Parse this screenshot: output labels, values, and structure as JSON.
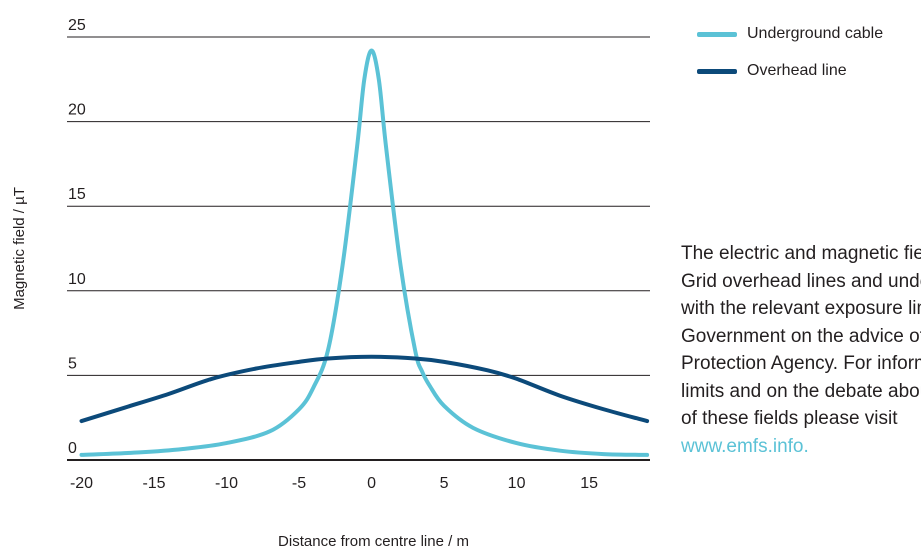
{
  "chart_data": {
    "type": "line",
    "xlabel": "Distance from centre line / m",
    "ylabel": "Magnetic field / µT",
    "xlim": [
      -21,
      19.2
    ],
    "ylim": [
      0,
      25
    ],
    "xticks": [
      -20,
      -15,
      -10,
      -5,
      0,
      5,
      10,
      15
    ],
    "yticks": [
      0,
      5,
      10,
      15,
      20,
      25
    ],
    "grid": "horizontal",
    "legend_position": "top-right",
    "series": [
      {
        "name": "Underground cable",
        "color": "#5bc2d6",
        "points": [
          [
            -20,
            0.3
          ],
          [
            -16,
            0.45
          ],
          [
            -13,
            0.65
          ],
          [
            -10,
            1.0
          ],
          [
            -7,
            1.7
          ],
          [
            -5,
            3.0
          ],
          [
            -4,
            4.3
          ],
          [
            -3,
            6.5
          ],
          [
            -2,
            11.5
          ],
          [
            -1,
            18.5
          ],
          [
            -0.5,
            22.5
          ],
          [
            0,
            24.2
          ],
          [
            0.5,
            22.5
          ],
          [
            1,
            18.5
          ],
          [
            2,
            11.5
          ],
          [
            3,
            6.5
          ],
          [
            3.5,
            5.2
          ],
          [
            4,
            4.4
          ],
          [
            5,
            3.2
          ],
          [
            7,
            1.9
          ],
          [
            10,
            1.0
          ],
          [
            13,
            0.55
          ],
          [
            16,
            0.35
          ],
          [
            19,
            0.3
          ]
        ]
      },
      {
        "name": "Overhead line",
        "color": "#0c4a7a",
        "points": [
          [
            -20,
            2.3
          ],
          [
            -17,
            3.1
          ],
          [
            -14,
            3.9
          ],
          [
            -11,
            4.8
          ],
          [
            -8,
            5.4
          ],
          [
            -5,
            5.8
          ],
          [
            -3,
            6.0
          ],
          [
            0,
            6.1
          ],
          [
            3,
            6.0
          ],
          [
            5,
            5.8
          ],
          [
            8,
            5.3
          ],
          [
            10,
            4.8
          ],
          [
            13,
            3.8
          ],
          [
            16,
            3.0
          ],
          [
            19,
            2.3
          ]
        ]
      }
    ]
  },
  "note": {
    "lines": [
      "The electric and magnetic fields from National",
      "Grid overhead lines and underground cables comply",
      "with the relevant exposure limits adopted by the",
      "Government on the advice of the Health",
      "Protection Agency. For information on the exposure",
      "limits and on the debate about the possible effects",
      "of these fields please visit"
    ],
    "link": "www.emfs.info."
  },
  "colors": {
    "link": "#5bc2d6",
    "axis": "#231f20",
    "gridline": "#231f20"
  }
}
